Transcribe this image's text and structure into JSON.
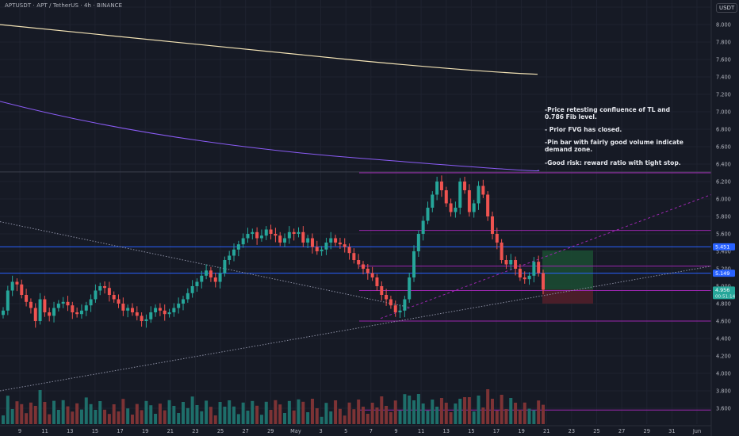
{
  "header": {
    "symbol": "APTUSDT · APT / TetherUS · 4h · BINANCE",
    "currency": "USDT"
  },
  "annotation": {
    "lines": [
      "-Price retesting confluence of TL and 0.786 Fib level.",
      "- Prior FVG has closed.",
      "-Pin bar with fairly good volume indicate demand zone.",
      "-Good risk: reward ratio with tight stop."
    ]
  },
  "colors": {
    "background": "#161a25",
    "up": "#26a69a",
    "down": "#ef5350",
    "up_volume": "#1e6e6a",
    "down_volume": "#7d3335",
    "ma_yellow": "#f3e3b5",
    "ma_purple": "#8b5cf6",
    "fib_purple": "#9c27b0",
    "blue_level": "#2962ff",
    "trendline": "#8c8fa3",
    "target_zone": "#1b4e32",
    "stop_zone": "#54202a"
  },
  "chart_data": {
    "type": "candlestick",
    "timeframe": "4h",
    "x_tick_labels": [
      "9",
      "11",
      "13",
      "15",
      "17",
      "19",
      "21",
      "23",
      "25",
      "27",
      "29",
      "May",
      "3",
      "5",
      "7",
      "9",
      "11",
      "13",
      "15",
      "17",
      "19",
      "21",
      "23",
      "25",
      "27",
      "29",
      "31",
      "Jun"
    ],
    "y_tick_labels": [
      "8.200",
      "8.000",
      "7.800",
      "7.600",
      "7.400",
      "7.200",
      "7.000",
      "6.800",
      "6.600",
      "6.400",
      "6.200",
      "6.000",
      "5.800",
      "5.600",
      "5.400",
      "5.200",
      "5.000",
      "4.800",
      "4.600",
      "4.400",
      "4.200",
      "4.000",
      "3.800",
      "3.600"
    ],
    "ylim": [
      3.56,
      8.3
    ],
    "price_badges": [
      {
        "label": "5.451",
        "value": 5.451,
        "color": "#2962ff"
      },
      {
        "label": "5.149",
        "value": 5.149,
        "color": "#2962ff"
      },
      {
        "label": "4.956",
        "sublabel": "00:51:14",
        "value": 4.956,
        "color": "#26a69a"
      }
    ],
    "horizontal_levels": [
      {
        "value": 6.3,
        "color": "#9c27b0"
      },
      {
        "value": 5.64,
        "color": "#9c27b0"
      },
      {
        "value": 5.23,
        "color": "#9c27b0"
      },
      {
        "value": 4.95,
        "color": "#9c27b0"
      },
      {
        "value": 4.6,
        "color": "#9c27b0"
      },
      {
        "value": 3.58,
        "color": "#9c27b0"
      },
      {
        "value": 5.451,
        "color": "#2962ff"
      },
      {
        "value": 5.149,
        "color": "#2962ff"
      }
    ],
    "close_series": [
      4.72,
      4.95,
      5.05,
      5.02,
      4.9,
      4.82,
      4.75,
      4.6,
      4.85,
      4.7,
      4.66,
      4.75,
      4.8,
      4.82,
      4.78,
      4.7,
      4.68,
      4.72,
      4.78,
      4.85,
      4.95,
      5.0,
      4.98,
      4.9,
      4.85,
      4.8,
      4.72,
      4.75,
      4.7,
      4.66,
      4.6,
      4.62,
      4.7,
      4.75,
      4.72,
      4.68,
      4.7,
      4.75,
      4.8,
      4.85,
      4.92,
      5.0,
      5.05,
      5.12,
      5.18,
      5.1,
      5.05,
      5.15,
      5.3,
      5.35,
      5.42,
      5.48,
      5.55,
      5.6,
      5.62,
      5.55,
      5.58,
      5.65,
      5.6,
      5.58,
      5.5,
      5.55,
      5.62,
      5.6,
      5.62,
      5.5,
      5.55,
      5.45,
      5.4,
      5.42,
      5.5,
      5.55,
      5.5,
      5.48,
      5.45,
      5.38,
      5.3,
      5.25,
      5.2,
      5.15,
      5.1,
      5.0,
      4.9,
      4.85,
      4.78,
      4.7,
      4.72,
      4.85,
      5.1,
      5.4,
      5.6,
      5.75,
      5.9,
      6.05,
      6.2,
      6.1,
      5.95,
      5.85,
      5.9,
      6.2,
      6.1,
      5.85,
      5.95,
      6.15,
      6.05,
      5.8,
      5.6,
      5.5,
      5.3,
      5.25,
      5.3,
      5.2,
      5.1,
      5.08,
      5.12,
      5.28,
      5.15,
      4.96
    ]
  }
}
